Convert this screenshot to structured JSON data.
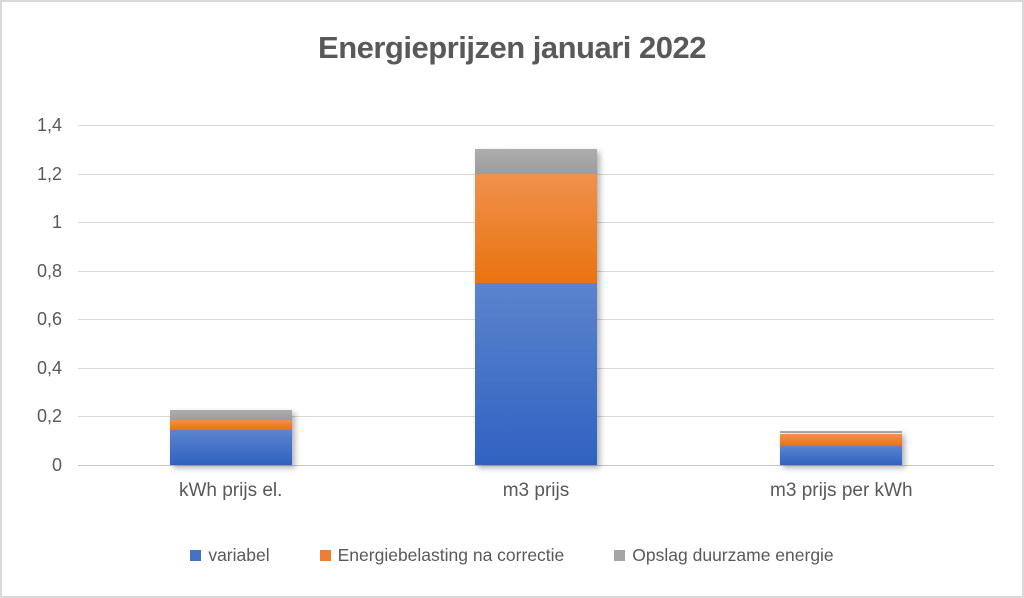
{
  "chart_data": {
    "type": "bar",
    "stacked": true,
    "title": "Energieprijzen januari 2022",
    "xlabel": "",
    "ylabel": "",
    "categories": [
      "kWh prijs el.",
      "m3 prijs",
      "m3 prijs per kWh"
    ],
    "series": [
      {
        "name": "variabel",
        "values": [
          0.145,
          0.75,
          0.08
        ],
        "color": "#4472C4",
        "gradient_top": "#5B84CE",
        "gradient_bottom": "#2F62C1"
      },
      {
        "name": "Energiebelasting na correctie",
        "values": [
          0.04,
          0.45,
          0.05
        ],
        "color": "#ED7D31",
        "gradient_top": "#F0914C",
        "gradient_bottom": "#E9730F"
      },
      {
        "name": "Opslag duurzame energie",
        "values": [
          0.04,
          0.1,
          0.012
        ],
        "color": "#A5A5A5",
        "gradient_top": "#ADADAD",
        "gradient_bottom": "#9C9C9C"
      }
    ],
    "ylim": [
      0,
      1.4
    ],
    "yticks": [
      {
        "value": 0,
        "label": "0"
      },
      {
        "value": 0.2,
        "label": "0,2"
      },
      {
        "value": 0.4,
        "label": "0,4"
      },
      {
        "value": 0.6,
        "label": "0,6"
      },
      {
        "value": 0.8,
        "label": "0,8"
      },
      {
        "value": 1,
        "label": "1"
      },
      {
        "value": 1.2,
        "label": "1,2"
      },
      {
        "value": 1.4,
        "label": "1,4"
      }
    ],
    "grid": true,
    "legend_position": "bottom"
  },
  "theme": {
    "background": "#FFFFFF",
    "border": "#D9D9D9",
    "gridline": "#D9D9D9",
    "axis_line": "#C6C6C6",
    "text": "#595959"
  }
}
